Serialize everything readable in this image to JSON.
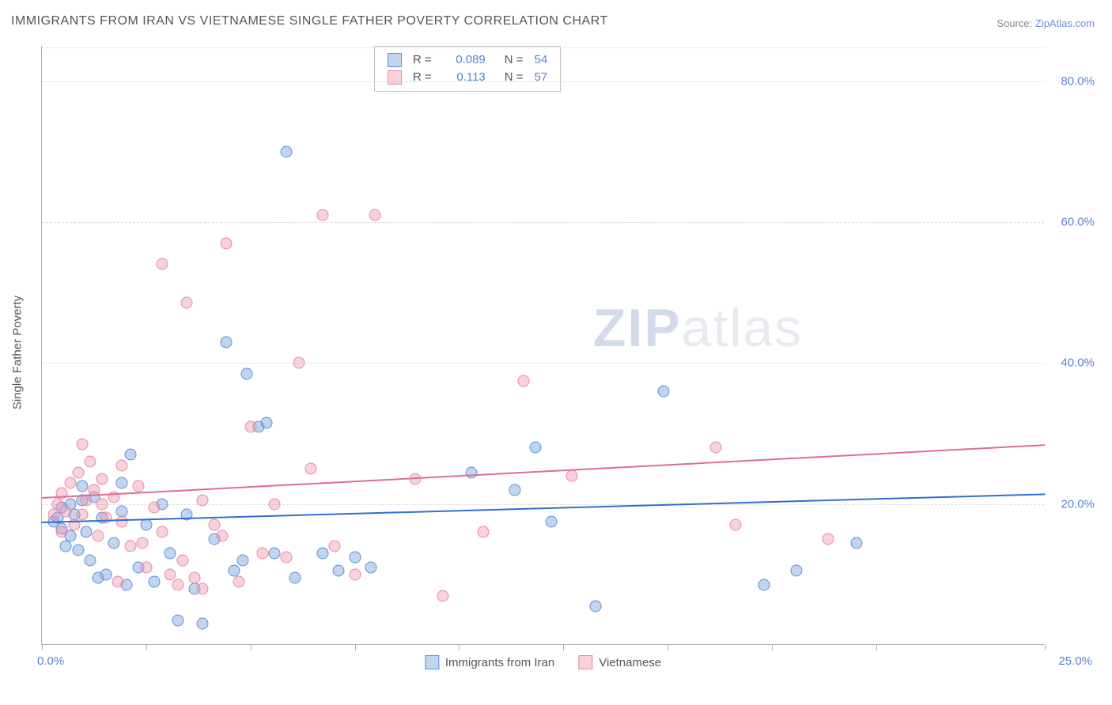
{
  "title": "IMMIGRANTS FROM IRAN VS VIETNAMESE SINGLE FATHER POVERTY CORRELATION CHART",
  "source_label": "Source:",
  "source_name": "ZipAtlas.com",
  "ylabel": "Single Father Poverty",
  "chart": {
    "type": "scatter",
    "background_color": "#ffffff",
    "grid_color": "#dcdcdc",
    "axis_color": "#b0b0b0",
    "xlim": [
      0,
      25
    ],
    "ylim": [
      0,
      85
    ],
    "xtick_positions": [
      0,
      2.6,
      5.2,
      7.8,
      10.4,
      13.0,
      15.6,
      18.2,
      20.8,
      25
    ],
    "xtick_labels": {
      "0": "0.0%",
      "25": "25.0%"
    },
    "ytick_positions": [
      20,
      40,
      60,
      80
    ],
    "ytick_labels": {
      "20": "20.0%",
      "40": "40.0%",
      "60": "60.0%",
      "80": "80.0%"
    },
    "marker_radius": 7.5,
    "marker_border_width": 1,
    "label_fontsize": 15,
    "title_fontsize": 16,
    "tick_label_color": "#5a82cf",
    "text_color": "#555555"
  },
  "watermark": {
    "bold": "ZIP",
    "rest": "atlas"
  },
  "series": [
    {
      "name": "Immigrants from Iran",
      "fill_color": "rgba(118,162,224,0.45)",
      "border_color": "#5f8fd6",
      "trend_color": "#2f6fd0",
      "R": "0.089",
      "N": "54",
      "trend": {
        "y_at_x0": 17.5,
        "y_at_x25": 21.5
      },
      "points": [
        [
          0.3,
          17.5
        ],
        [
          0.4,
          18.0
        ],
        [
          0.5,
          16.5
        ],
        [
          0.5,
          19.5
        ],
        [
          0.6,
          14.0
        ],
        [
          0.7,
          15.5
        ],
        [
          0.8,
          18.5
        ],
        [
          0.9,
          13.5
        ],
        [
          1.0,
          20.5
        ],
        [
          1.1,
          16.0
        ],
        [
          1.2,
          12.0
        ],
        [
          1.3,
          21.0
        ],
        [
          1.4,
          9.5
        ],
        [
          1.5,
          18.0
        ],
        [
          1.6,
          10.0
        ],
        [
          1.8,
          14.5
        ],
        [
          2.0,
          19.0
        ],
        [
          2.1,
          8.5
        ],
        [
          2.2,
          27.0
        ],
        [
          2.4,
          11.0
        ],
        [
          2.6,
          17.0
        ],
        [
          2.8,
          9.0
        ],
        [
          3.0,
          20.0
        ],
        [
          3.2,
          13.0
        ],
        [
          3.4,
          3.5
        ],
        [
          3.6,
          18.5
        ],
        [
          3.8,
          8.0
        ],
        [
          4.0,
          3.0
        ],
        [
          4.3,
          15.0
        ],
        [
          4.6,
          43.0
        ],
        [
          4.8,
          10.5
        ],
        [
          5.1,
          38.5
        ],
        [
          5.4,
          31.0
        ],
        [
          5.6,
          31.5
        ],
        [
          5.8,
          13.0
        ],
        [
          6.1,
          70.0
        ],
        [
          6.3,
          9.5
        ],
        [
          5.0,
          12.0
        ],
        [
          7.0,
          13.0
        ],
        [
          7.4,
          10.5
        ],
        [
          7.8,
          12.5
        ],
        [
          8.2,
          11.0
        ],
        [
          10.7,
          24.5
        ],
        [
          11.8,
          22.0
        ],
        [
          12.3,
          28.0
        ],
        [
          12.7,
          17.5
        ],
        [
          13.8,
          5.5
        ],
        [
          15.5,
          36.0
        ],
        [
          18.0,
          8.5
        ],
        [
          18.8,
          10.5
        ],
        [
          20.3,
          14.5
        ],
        [
          1.0,
          22.5
        ],
        [
          2.0,
          23.0
        ],
        [
          0.7,
          20.0
        ]
      ]
    },
    {
      "name": "Vietnamese",
      "fill_color": "rgba(240,154,175,0.45)",
      "border_color": "#e68aa4",
      "trend_color": "#e06d90",
      "R": "0.113",
      "N": "57",
      "trend": {
        "y_at_x0": 21.0,
        "y_at_x25": 28.5
      },
      "points": [
        [
          0.3,
          18.5
        ],
        [
          0.4,
          20.0
        ],
        [
          0.5,
          21.5
        ],
        [
          0.6,
          19.0
        ],
        [
          0.7,
          23.0
        ],
        [
          0.8,
          17.0
        ],
        [
          0.9,
          24.5
        ],
        [
          1.0,
          28.5
        ],
        [
          1.1,
          20.5
        ],
        [
          1.2,
          26.0
        ],
        [
          1.3,
          22.0
        ],
        [
          1.4,
          15.5
        ],
        [
          1.5,
          23.5
        ],
        [
          1.6,
          18.0
        ],
        [
          1.8,
          21.0
        ],
        [
          1.9,
          9.0
        ],
        [
          2.0,
          25.5
        ],
        [
          2.2,
          14.0
        ],
        [
          2.4,
          22.5
        ],
        [
          2.6,
          11.0
        ],
        [
          2.8,
          19.5
        ],
        [
          3.0,
          54.0
        ],
        [
          3.2,
          10.0
        ],
        [
          3.4,
          8.5
        ],
        [
          3.6,
          48.5
        ],
        [
          3.8,
          9.5
        ],
        [
          4.0,
          20.5
        ],
        [
          4.3,
          17.0
        ],
        [
          4.6,
          57.0
        ],
        [
          4.9,
          9.0
        ],
        [
          5.2,
          31.0
        ],
        [
          5.5,
          13.0
        ],
        [
          5.8,
          20.0
        ],
        [
          6.1,
          12.5
        ],
        [
          6.4,
          40.0
        ],
        [
          6.7,
          25.0
        ],
        [
          7.0,
          61.0
        ],
        [
          7.3,
          14.0
        ],
        [
          7.8,
          10.0
        ],
        [
          8.3,
          61.0
        ],
        [
          9.3,
          23.5
        ],
        [
          10.0,
          7.0
        ],
        [
          11.0,
          16.0
        ],
        [
          12.0,
          37.5
        ],
        [
          13.2,
          24.0
        ],
        [
          16.8,
          28.0
        ],
        [
          17.3,
          17.0
        ],
        [
          19.6,
          15.0
        ],
        [
          0.5,
          16.0
        ],
        [
          1.0,
          18.5
        ],
        [
          1.5,
          20.0
        ],
        [
          2.0,
          17.5
        ],
        [
          2.5,
          14.5
        ],
        [
          3.0,
          16.0
        ],
        [
          3.5,
          12.0
        ],
        [
          4.0,
          8.0
        ],
        [
          4.5,
          15.5
        ]
      ]
    }
  ],
  "legend_bottom": [
    {
      "label": "Immigrants from Iran"
    },
    {
      "label": "Vietnamese"
    }
  ]
}
